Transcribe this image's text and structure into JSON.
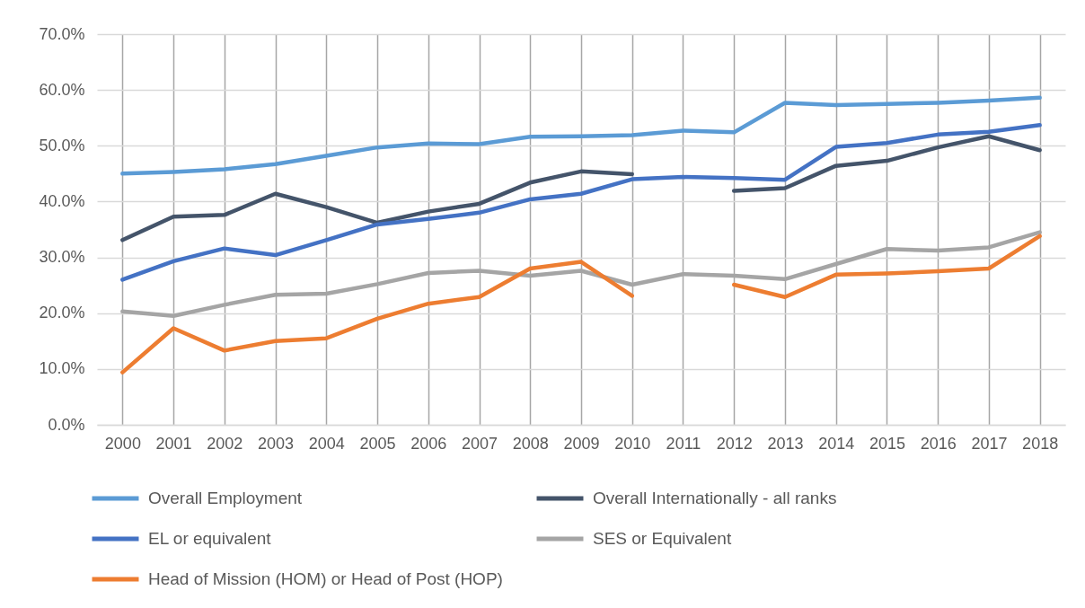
{
  "chart_data": {
    "type": "line",
    "categories": [
      "2000",
      "2001",
      "2002",
      "2003",
      "2004",
      "2005",
      "2006",
      "2007",
      "2008",
      "2009",
      "2010",
      "2011",
      "2012",
      "2013",
      "2014",
      "2015",
      "2016",
      "2017",
      "2018"
    ],
    "series": [
      {
        "name": "Overall Employment",
        "color": "#5b9bd5",
        "values": [
          45.0,
          45.3,
          45.8,
          46.7,
          48.2,
          49.7,
          50.4,
          50.3,
          51.6,
          51.7,
          51.9,
          52.7,
          52.4,
          57.7,
          57.3,
          57.5,
          57.7,
          58.1,
          58.6
        ]
      },
      {
        "name": "Overall Internationally - all ranks",
        "color": "#44546a",
        "values": [
          33.1,
          37.3,
          37.6,
          41.4,
          39.0,
          36.2,
          38.2,
          39.6,
          43.4,
          45.4,
          44.9,
          null,
          41.9,
          42.4,
          46.4,
          47.3,
          49.7,
          51.7,
          49.2
        ]
      },
      {
        "name": "EL or equivalent",
        "color": "#4472c4",
        "values": [
          26.0,
          29.3,
          31.6,
          30.4,
          33.1,
          35.9,
          36.9,
          38.0,
          40.4,
          41.4,
          44.0,
          44.4,
          44.2,
          43.9,
          49.8,
          50.5,
          52.0,
          52.5,
          53.7
        ]
      },
      {
        "name": "SES or Equivalent",
        "color": "#a5a5a5",
        "values": [
          20.3,
          19.5,
          21.5,
          23.3,
          23.5,
          25.2,
          27.2,
          27.6,
          26.7,
          27.6,
          25.1,
          27.0,
          26.7,
          26.1,
          28.8,
          31.5,
          31.2,
          31.8,
          34.5
        ]
      },
      {
        "name": "Head of Mission (HOM) or Head of Post (HOP)",
        "color": "#ed7d31",
        "values": [
          9.4,
          17.3,
          13.3,
          15.0,
          15.5,
          19.0,
          21.7,
          22.9,
          28.0,
          29.2,
          23.1,
          null,
          25.1,
          22.9,
          26.9,
          27.1,
          27.5,
          28.0,
          33.8
        ]
      }
    ],
    "ylim": [
      0,
      70
    ],
    "yticks": [
      {
        "value": 0,
        "label": "0.0%"
      },
      {
        "value": 10,
        "label": "10.0%"
      },
      {
        "value": 20,
        "label": "20.0%"
      },
      {
        "value": 30,
        "label": "30.0%"
      },
      {
        "value": 40,
        "label": "40.0%"
      },
      {
        "value": 50,
        "label": "50.0%"
      },
      {
        "value": 60,
        "label": "60.0%"
      },
      {
        "value": 70,
        "label": "70.0%"
      }
    ],
    "grid": true,
    "legend": "bottom"
  }
}
